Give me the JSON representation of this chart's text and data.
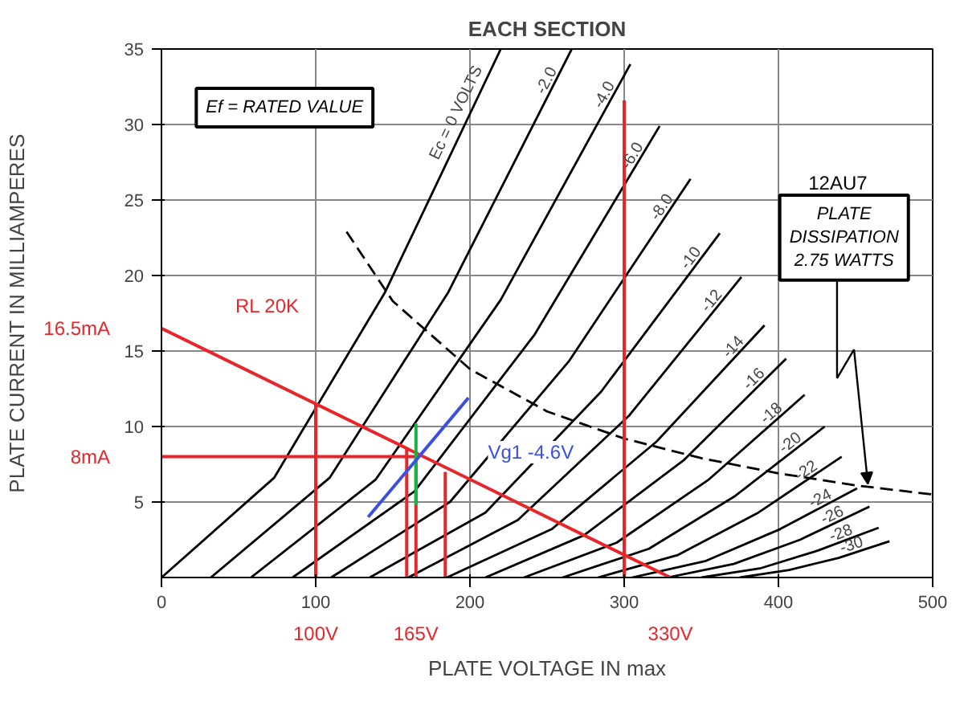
{
  "chart_data": {
    "type": "line",
    "title": "EACH SECTION",
    "xlabel": "PLATE VOLTAGE IN max",
    "ylabel": "PLATE CURRENT IN MILLIAMPERES",
    "xlim": [
      0,
      500
    ],
    "ylim": [
      0,
      35
    ],
    "xticks": [
      0,
      100,
      200,
      300,
      400,
      500
    ],
    "yticks": [
      5,
      10,
      15,
      20,
      25,
      30,
      35
    ],
    "grid": true,
    "marker": "none",
    "line_style": "solid",
    "series": [
      {
        "name": "Ec = 0 VOLTS",
        "color": "#000000",
        "x": [
          0,
          73,
          145,
          220
        ],
        "values": [
          0,
          6.6,
          18.9,
          35
        ]
      },
      {
        "name": "-2.0",
        "color": "#000000",
        "x": [
          32,
          109,
          186,
          266
        ],
        "values": [
          0,
          6.6,
          18.9,
          35
        ]
      },
      {
        "name": "-4.0",
        "color": "#000000",
        "x": [
          58,
          139,
          220,
          304
        ],
        "values": [
          0,
          6.5,
          18.4,
          34
        ]
      },
      {
        "name": "-6.0",
        "color": "#000000",
        "x": [
          85,
          164,
          242,
          323
        ],
        "values": [
          0,
          5.7,
          16.1,
          29.9
        ]
      },
      {
        "name": "-8.0",
        "color": "#000000",
        "x": [
          110,
          187,
          264,
          343
        ],
        "values": [
          0,
          5,
          14.3,
          26.4
        ]
      },
      {
        "name": "-10",
        "color": "#000000",
        "x": [
          135,
          210,
          285,
          362
        ],
        "values": [
          0,
          4.3,
          12.3,
          22.8
        ]
      },
      {
        "name": "-12",
        "color": "#000000",
        "x": [
          160,
          231,
          303,
          376
        ],
        "values": [
          0,
          3.8,
          10.7,
          19.9
        ]
      },
      {
        "name": "-14",
        "color": "#000000",
        "x": [
          185,
          253,
          321,
          391
        ],
        "values": [
          0,
          3.2,
          9,
          16.7
        ]
      },
      {
        "name": "-16",
        "color": "#000000",
        "x": [
          210,
          274,
          339,
          405
        ],
        "values": [
          0,
          2.8,
          7.8,
          14.5
        ]
      },
      {
        "name": "-18",
        "color": "#000000",
        "x": [
          235,
          295,
          355,
          417
        ],
        "values": [
          0,
          2.3,
          6.5,
          12.1
        ]
      },
      {
        "name": "-20",
        "color": "#000000",
        "x": [
          260,
          316,
          372,
          430
        ],
        "values": [
          0,
          1.9,
          5.4,
          10
        ]
      },
      {
        "name": "-22",
        "color": "#000000",
        "x": [
          283,
          335,
          387,
          441
        ],
        "values": [
          0,
          1.5,
          4.3,
          8
        ]
      },
      {
        "name": "-24",
        "color": "#000000",
        "x": [
          305,
          353,
          401,
          451
        ],
        "values": [
          0,
          1.1,
          3.2,
          5.9
        ]
      },
      {
        "name": "-26",
        "color": "#000000",
        "x": [
          328,
          371,
          414,
          459
        ],
        "values": [
          0,
          0.9,
          2.5,
          4.7
        ]
      },
      {
        "name": "-28",
        "color": "#000000",
        "x": [
          350,
          388,
          426,
          465
        ],
        "values": [
          0,
          0.6,
          1.8,
          3.3
        ]
      },
      {
        "name": "-30",
        "color": "#000000",
        "x": [
          375,
          407,
          439,
          472
        ],
        "values": [
          0,
          0.5,
          1.3,
          2.4
        ]
      },
      {
        "color": "#000000",
        "line_style": "dashed",
        "x": [
          120,
          150,
          200,
          250,
          300,
          350,
          400,
          450,
          500
        ],
        "values": [
          22.9,
          18.3,
          13.8,
          11,
          9.2,
          7.9,
          6.9,
          6.1,
          5.5
        ]
      },
      {
        "color": "#e8262a",
        "x": [
          0,
          330
        ],
        "values": [
          16.5,
          0
        ]
      },
      {
        "color": "#e8262a",
        "x": [
          0,
          165
        ],
        "values": [
          8,
          8
        ]
      },
      {
        "color": "#e8262a",
        "x": [
          100,
          100
        ],
        "values": [
          0,
          11.5
        ]
      },
      {
        "color": "#e8262a",
        "x": [
          159,
          159
        ],
        "values": [
          0,
          8.6
        ]
      },
      {
        "color": "#e8262a",
        "x": [
          165,
          165
        ],
        "values": [
          0,
          8
        ]
      },
      {
        "color": "#e8262a",
        "x": [
          184,
          184
        ],
        "values": [
          0,
          7
        ]
      },
      {
        "color": "#e8262a",
        "x": [
          300,
          300
        ],
        "values": [
          0,
          31.6
        ]
      },
      {
        "color": "#1db33a",
        "x": [
          165,
          165
        ],
        "values": [
          4.8,
          10.2
        ]
      },
      {
        "color": "#3b4fe0",
        "x": [
          134,
          199
        ],
        "values": [
          4,
          11.9
        ]
      }
    ],
    "annotations": [
      "Ef = RATED VALUE",
      "12AU7",
      "PLATE\nDISSIPATION\n2.75 WATTS",
      "Vg1 -4.6V",
      "RL 20K",
      {
        "text": "16.5mA",
        "x": 0,
        "y": 16.5
      },
      {
        "text": "8mA",
        "x": 0,
        "y": 8
      },
      {
        "text": "100V",
        "x": 100,
        "y": 0
      },
      {
        "text": "165V",
        "x": 165,
        "y": 0
      },
      {
        "text": "330V",
        "x": 330,
        "y": 0
      }
    ]
  }
}
